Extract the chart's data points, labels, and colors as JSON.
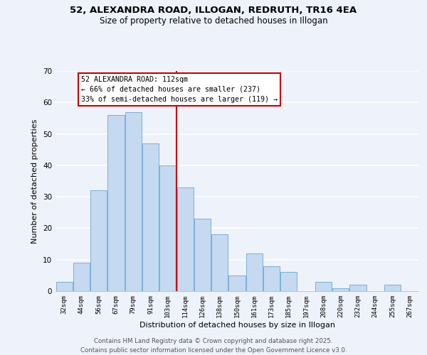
{
  "title1": "52, ALEXANDRA ROAD, ILLOGAN, REDRUTH, TR16 4EA",
  "title2": "Size of property relative to detached houses in Illogan",
  "xlabel": "Distribution of detached houses by size in Illogan",
  "ylabel": "Number of detached properties",
  "categories": [
    "32sqm",
    "44sqm",
    "56sqm",
    "67sqm",
    "79sqm",
    "91sqm",
    "103sqm",
    "114sqm",
    "126sqm",
    "138sqm",
    "150sqm",
    "161sqm",
    "173sqm",
    "185sqm",
    "197sqm",
    "208sqm",
    "220sqm",
    "232sqm",
    "244sqm",
    "255sqm",
    "267sqm"
  ],
  "values": [
    3,
    9,
    32,
    56,
    57,
    47,
    40,
    33,
    23,
    18,
    5,
    12,
    8,
    6,
    0,
    3,
    1,
    2,
    0,
    2,
    0
  ],
  "bar_color": "#c5d9f1",
  "bar_edge_color": "#7ab0d4",
  "vline_index": 6.5,
  "annotation_title": "52 ALEXANDRA ROAD: 112sqm",
  "annotation_line1": "← 66% of detached houses are smaller (237)",
  "annotation_line2": "33% of semi-detached houses are larger (119) →",
  "annotation_box_color": "#ffffff",
  "annotation_box_edge": "#cc0000",
  "vline_color": "#cc0000",
  "ylim": [
    0,
    70
  ],
  "yticks": [
    0,
    10,
    20,
    30,
    40,
    50,
    60,
    70
  ],
  "footer1": "Contains HM Land Registry data © Crown copyright and database right 2025.",
  "footer2": "Contains public sector information licensed under the Open Government Licence v3.0.",
  "bg_color": "#eef2fa"
}
